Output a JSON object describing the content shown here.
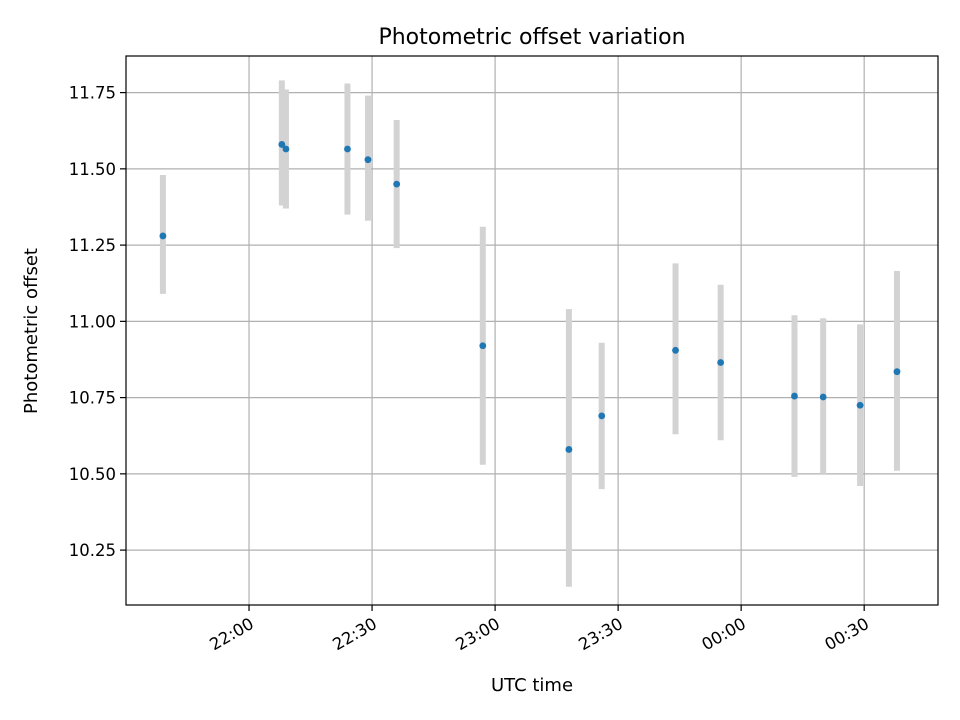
{
  "chart_data": {
    "type": "scatter",
    "title": "Photometric offset variation",
    "xlabel": "UTC time",
    "ylabel": "Photometric offset",
    "x_axis_type": "time",
    "xlim": [
      "21:30",
      "00:48"
    ],
    "ylim": [
      10.07,
      11.87
    ],
    "grid": true,
    "x_ticks": [
      "22:00",
      "22:30",
      "23:00",
      "23:30",
      "00:00",
      "00:30"
    ],
    "y_ticks": [
      "10.25",
      "10.50",
      "10.75",
      "11.00",
      "11.25",
      "11.50",
      "11.75"
    ],
    "points": [
      {
        "x": "21:39",
        "y": 11.28,
        "yerr_low": 11.09,
        "yerr_high": 11.48
      },
      {
        "x": "22:08",
        "y": 11.58,
        "yerr_low": 11.38,
        "yerr_high": 11.79
      },
      {
        "x": "22:09",
        "y": 11.565,
        "yerr_low": 11.37,
        "yerr_high": 11.76
      },
      {
        "x": "22:24",
        "y": 11.565,
        "yerr_low": 11.35,
        "yerr_high": 11.78
      },
      {
        "x": "22:29",
        "y": 11.53,
        "yerr_low": 11.33,
        "yerr_high": 11.74
      },
      {
        "x": "22:36",
        "y": 11.45,
        "yerr_low": 11.24,
        "yerr_high": 11.66
      },
      {
        "x": "22:57",
        "y": 10.92,
        "yerr_low": 10.53,
        "yerr_high": 11.31
      },
      {
        "x": "23:18",
        "y": 10.58,
        "yerr_low": 10.13,
        "yerr_high": 11.04
      },
      {
        "x": "23:26",
        "y": 10.69,
        "yerr_low": 10.45,
        "yerr_high": 10.93
      },
      {
        "x": "23:44",
        "y": 10.905,
        "yerr_low": 10.63,
        "yerr_high": 11.19
      },
      {
        "x": "23:55",
        "y": 10.865,
        "yerr_low": 10.61,
        "yerr_high": 11.12
      },
      {
        "x": "00:13",
        "y": 10.755,
        "yerr_low": 10.49,
        "yerr_high": 11.02
      },
      {
        "x": "00:20",
        "y": 10.752,
        "yerr_low": 10.5,
        "yerr_high": 11.01
      },
      {
        "x": "00:29",
        "y": 10.725,
        "yerr_low": 10.46,
        "yerr_high": 10.99
      },
      {
        "x": "00:38",
        "y": 10.835,
        "yerr_low": 10.51,
        "yerr_high": 11.165
      }
    ],
    "colors": {
      "marker": "#1f77b4",
      "errorbar": "#d3d3d3",
      "grid": "#b0b0b0",
      "axes": "#000000"
    }
  }
}
